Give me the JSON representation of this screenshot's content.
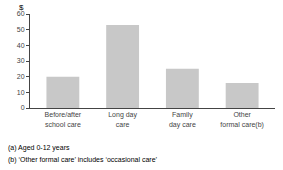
{
  "chart_data": {
    "type": "bar",
    "categories": [
      "Before/after\nschool care",
      "Long day\ncare",
      "Family\nday care",
      "Other\nformal care(b)"
    ],
    "values": [
      20,
      53,
      25,
      16
    ],
    "color": "#c8c8c8",
    "ylabel": "$",
    "annotations": [
      "(a) Aged 0-12 years",
      "(b) ‘Other formal care’ includes ‘occasional care’"
    ],
    "ylim": [
      0,
      60
    ],
    "yticks": [
      0,
      10,
      20,
      30,
      40,
      50,
      60
    ],
    "grid": false
  }
}
